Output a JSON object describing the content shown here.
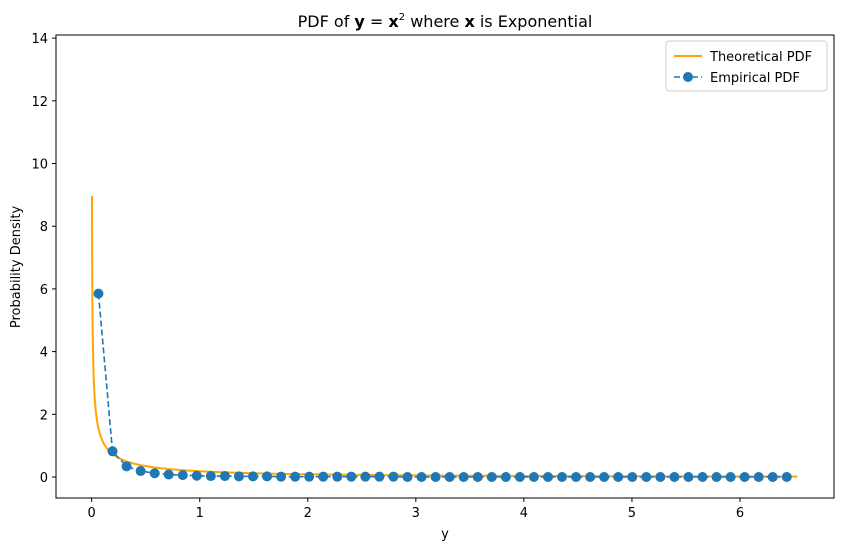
{
  "chart_data": {
    "type": "line",
    "title": {
      "prefix": "PDF of ",
      "var_y": "y",
      "eq": " = ",
      "var_x": "x",
      "sup": "2",
      "mid": " where ",
      "var_x2": "x",
      "suffix": " is Exponential"
    },
    "xlabel": "y",
    "ylabel": "Probability Density",
    "xlim": [
      -0.33,
      6.87
    ],
    "ylim": [
      -0.67,
      14.1
    ],
    "xticks": [
      0,
      1,
      2,
      3,
      4,
      5,
      6
    ],
    "yticks": [
      0,
      2,
      4,
      6,
      8,
      10,
      12,
      14
    ],
    "grid": false,
    "legend_position": "top-right",
    "theoretical": {
      "name": "Theoretical PDF",
      "color": "#ffa500",
      "style": "solid",
      "formula": "lambda * exp(-lambda * sqrt(y)) / (2 * sqrt(y))",
      "lambda": 1,
      "x_min": 0.0028,
      "x_max": 6.53
    },
    "empirical": {
      "name": "Empirical PDF",
      "color": "#1f77b4",
      "style": "dashed",
      "marker": "circle",
      "x": [
        0.063,
        0.193,
        0.323,
        0.453,
        0.583,
        0.713,
        0.843,
        0.973,
        1.103,
        1.233,
        1.363,
        1.493,
        1.623,
        1.753,
        1.883,
        2.013,
        2.143,
        2.273,
        2.403,
        2.533,
        2.663,
        2.793,
        2.923,
        3.053,
        3.183,
        3.313,
        3.443,
        3.573,
        3.703,
        3.833,
        3.963,
        4.093,
        4.223,
        4.353,
        4.483,
        4.613,
        4.743,
        4.873,
        5.003,
        5.133,
        5.263,
        5.393,
        5.523,
        5.653,
        5.783,
        5.913,
        6.043,
        6.173,
        6.303,
        6.433
      ],
      "y": [
        5.85,
        0.82,
        0.34,
        0.19,
        0.12,
        0.08,
        0.06,
        0.04,
        0.03,
        0.03,
        0.02,
        0.02,
        0.02,
        0.01,
        0.01,
        0.01,
        0.01,
        0.01,
        0.01,
        0.01,
        0.01,
        0.01,
        0.0,
        0.0,
        0.0,
        0.0,
        0.0,
        0.0,
        0.0,
        0.0,
        0.0,
        0.0,
        0.0,
        0.0,
        0.0,
        0.0,
        0.0,
        0.0,
        0.0,
        0.0,
        0.0,
        0.0,
        0.0,
        0.0,
        0.0,
        0.0,
        0.0,
        0.0,
        0.0,
        0.0
      ]
    }
  }
}
